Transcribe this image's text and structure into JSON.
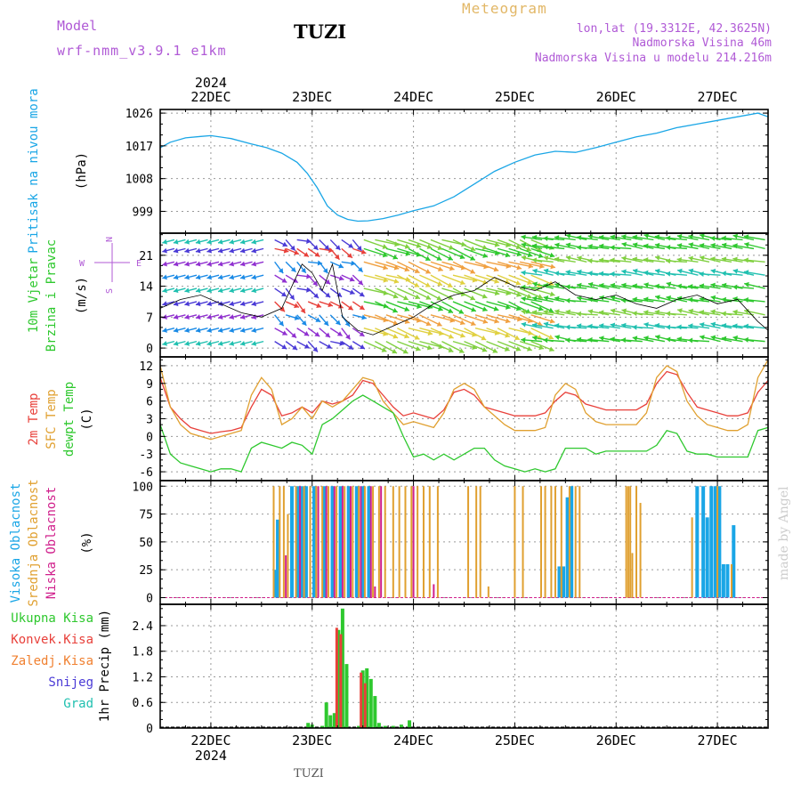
{
  "header": {
    "model_label": "Model",
    "model_name": "wrf-nmm_v3.9.1 e1km",
    "station": "TUZI",
    "product": "Meteogram",
    "lonlat": "lon,lat (19.3312E, 42.3625N)",
    "altitude": "Nadmorska Visina 46m",
    "model_altitude": "Nadmorska Visina u modelu 214.216m"
  },
  "footer": {
    "station": "TUZI",
    "credit": "made by Angel"
  },
  "colors": {
    "pressure": "#1aa6e6",
    "t2m": "#e8403a",
    "sfc": "#e0a030",
    "dewpt": "#2ec82e",
    "high_cloud": "#1aa6e6",
    "mid_cloud": "#e0a030",
    "low_cloud": "#d0208c",
    "total_precip": "#2ec82e",
    "conv_precip": "#e8403a",
    "frozen_precip": "#f08030",
    "snow": "#4a3ad6",
    "graupel": "#20c0b0",
    "wind_axis": "#b05ad6"
  },
  "chart_data": [
    {
      "type": "line",
      "panel": "pressure",
      "ylabel_outer": "Pritisak na nivou mora",
      "ylabel": "(hPa)",
      "year_top": "2024",
      "year_bottom": "2024",
      "day_labels": [
        "22DEC",
        "23DEC",
        "24DEC",
        "25DEC",
        "26DEC",
        "27DEC"
      ],
      "x": [
        21.5,
        21.6,
        21.75,
        21.9,
        22.0,
        22.2,
        22.4,
        22.55,
        22.7,
        22.85,
        22.95,
        23.05,
        23.15,
        23.25,
        23.35,
        23.45,
        23.55,
        23.7,
        23.85,
        24.0,
        24.2,
        24.4,
        24.6,
        24.8,
        25.0,
        25.2,
        25.4,
        25.6,
        25.8,
        26.0,
        26.2,
        26.4,
        26.6,
        26.8,
        27.0,
        27.2,
        27.4,
        27.5
      ],
      "values": [
        1016.5,
        1018.0,
        1019.2,
        1019.6,
        1019.8,
        1019.0,
        1017.5,
        1016.5,
        1015.0,
        1012.5,
        1009.5,
        1005.5,
        1000.5,
        998.0,
        996.8,
        996.3,
        996.4,
        997.0,
        998.0,
        999.2,
        1000.5,
        1003.0,
        1006.5,
        1010.0,
        1012.5,
        1014.5,
        1015.5,
        1015.2,
        1016.5,
        1018.0,
        1019.5,
        1020.5,
        1022.0,
        1023.0,
        1024.0,
        1025.0,
        1026.0,
        1025.0
      ],
      "yticks": [
        999,
        1008,
        1017,
        1026
      ],
      "ylim": [
        993,
        1027
      ]
    },
    {
      "type": "barbs",
      "panel": "wind",
      "ylabel_outer1": "10m Vjetar",
      "ylabel_outer2": "Brzina i Pravac",
      "ylabel": "(m/s)",
      "compass": {
        "north": "N",
        "south": "S",
        "west": "W",
        "east": "E"
      },
      "yticks": [
        0,
        7,
        14,
        21
      ],
      "ylim": [
        -2,
        26
      ],
      "speed_line_x": [
        21.5,
        21.7,
        21.9,
        22.1,
        22.3,
        22.5,
        22.7,
        22.8,
        22.9,
        23.0,
        23.1,
        23.2,
        23.3,
        23.45,
        23.6,
        23.8,
        24.0,
        24.2,
        24.4,
        24.6,
        24.8,
        25.0,
        25.2,
        25.4,
        25.6,
        25.8,
        26.0,
        26.2,
        26.4,
        26.6,
        26.8,
        27.0,
        27.2,
        27.4,
        27.5
      ],
      "speed_line_values": [
        9,
        11,
        12,
        10,
        8,
        7,
        9,
        14,
        19,
        17,
        13,
        19,
        7,
        4,
        3,
        5,
        7,
        10,
        12,
        13,
        16,
        14,
        13,
        15,
        12,
        11,
        12,
        10,
        9,
        11,
        12,
        10,
        11,
        6,
        4
      ]
    },
    {
      "type": "line",
      "panel": "temperature",
      "ylabel1": "2m Temp",
      "ylabel2": "SFC Temp",
      "ylabel3": "dewpt Temp",
      "ylabel": "(C)",
      "yticks": [
        -6,
        -3,
        0,
        3,
        6,
        9,
        12
      ],
      "ylim": [
        -7.5,
        13.5
      ],
      "x": [
        21.5,
        21.6,
        21.7,
        21.8,
        21.9,
        22.0,
        22.1,
        22.2,
        22.3,
        22.4,
        22.5,
        22.6,
        22.7,
        22.8,
        22.9,
        23.0,
        23.1,
        23.2,
        23.3,
        23.4,
        23.5,
        23.6,
        23.7,
        23.8,
        23.9,
        24.0,
        24.1,
        24.2,
        24.3,
        24.4,
        24.5,
        24.6,
        24.7,
        24.8,
        24.9,
        25.0,
        25.1,
        25.2,
        25.3,
        25.4,
        25.5,
        25.6,
        25.7,
        25.8,
        25.9,
        26.0,
        26.1,
        26.2,
        26.3,
        26.4,
        26.5,
        26.6,
        26.7,
        26.8,
        26.9,
        27.0,
        27.1,
        27.2,
        27.3,
        27.4,
        27.5
      ],
      "series": [
        {
          "name": "2m Temp",
          "values": [
            10,
            5,
            3,
            1.5,
            1,
            0.5,
            0.8,
            1,
            1.5,
            5,
            8,
            7,
            3.5,
            4,
            5,
            4,
            6,
            5.5,
            6,
            7,
            9.5,
            9,
            7,
            5,
            3.5,
            4,
            3.5,
            3,
            4.5,
            7.5,
            8,
            7,
            5,
            4.5,
            4,
            3.5,
            3.5,
            3.5,
            4,
            6,
            7.5,
            7,
            5.5,
            5,
            4.5,
            4.5,
            4.5,
            4.5,
            5.5,
            9,
            11,
            10.5,
            7.5,
            5,
            4.5,
            4,
            3.5,
            3.5,
            4,
            7.5,
            9.5
          ]
        },
        {
          "name": "SFC Temp",
          "values": [
            12,
            5,
            2,
            0.5,
            0,
            -0.5,
            0,
            0.5,
            1,
            7,
            10,
            8,
            2,
            3,
            5,
            3,
            6,
            5,
            6,
            8,
            10,
            9.5,
            6,
            4,
            2,
            2.5,
            2,
            1.5,
            4,
            8,
            9,
            8,
            5,
            3.5,
            2,
            1,
            1,
            1,
            1.5,
            7,
            9,
            8,
            4,
            2.5,
            2,
            2,
            2,
            2,
            4,
            10,
            12,
            11,
            6,
            3.5,
            2,
            1.5,
            1,
            1,
            2,
            10,
            13
          ]
        },
        {
          "name": "dewpt Temp",
          "values": [
            2,
            -3,
            -4.5,
            -5,
            -5.5,
            -6,
            -5.5,
            -5.5,
            -6,
            -2,
            -1,
            -1.5,
            -2,
            -1,
            -1.5,
            -3,
            2,
            3,
            4.5,
            6,
            7,
            6,
            5,
            4,
            0,
            -3.5,
            -3,
            -4,
            -3,
            -4,
            -3,
            -2,
            -2,
            -4,
            -5,
            -5.5,
            -6,
            -5.5,
            -6,
            -5.5,
            -2,
            -2,
            -2,
            -3,
            -2.5,
            -2.5,
            -2.5,
            -2.5,
            -2.5,
            -1.5,
            1,
            0.5,
            -2.5,
            -3,
            -3,
            -3.5,
            -3.5,
            -3.5,
            -3.5,
            1,
            1.5
          ]
        }
      ]
    },
    {
      "type": "bar",
      "panel": "cloud",
      "ylabel1": "Visoka Oblacnost",
      "ylabel2": "Srednja Oblacnost",
      "ylabel3": "Niska Oblacnost",
      "ylabel": "(%)",
      "yticks": [
        0,
        25,
        50,
        75,
        100
      ],
      "ylim": [
        -6,
        105
      ],
      "series": [
        {
          "name": "Visoka Oblacnost",
          "x": [
            22.64,
            22.66,
            22.8,
            22.86,
            22.9,
            22.94,
            23.02,
            23.12,
            23.2,
            23.28,
            23.36,
            23.44,
            23.5,
            23.56,
            25.44,
            25.48,
            25.52,
            25.56,
            26.8,
            26.86,
            26.9,
            26.94,
            26.98,
            27.02,
            27.06,
            27.1,
            27.16
          ],
          "values": [
            25,
            70,
            100,
            100,
            100,
            100,
            100,
            100,
            100,
            100,
            100,
            100,
            100,
            100,
            28,
            28,
            90,
            100,
            100,
            100,
            72,
            100,
            100,
            100,
            30,
            30,
            65
          ]
        },
        {
          "name": "Srednja Oblacnost",
          "x": [
            22.62,
            22.68,
            22.72,
            22.76,
            22.84,
            22.92,
            22.98,
            23.04,
            23.1,
            23.16,
            23.24,
            23.32,
            23.4,
            23.46,
            23.52,
            23.6,
            23.66,
            23.72,
            23.8,
            23.86,
            23.92,
            23.98,
            24.04,
            24.1,
            24.16,
            24.24,
            24.54,
            24.62,
            24.66,
            24.74,
            25.0,
            25.08,
            25.26,
            25.3,
            25.36,
            25.4,
            25.46,
            25.54,
            25.6,
            25.64,
            26.1,
            26.12,
            26.14,
            26.16,
            26.2,
            26.24,
            26.75,
            27.0,
            27.14
          ],
          "values": [
            100,
            100,
            100,
            75,
            100,
            100,
            100,
            100,
            100,
            100,
            100,
            100,
            100,
            100,
            100,
            100,
            100,
            100,
            100,
            100,
            100,
            100,
            100,
            100,
            100,
            100,
            100,
            100,
            100,
            10,
            100,
            100,
            100,
            100,
            100,
            100,
            100,
            100,
            100,
            100,
            100,
            100,
            100,
            40,
            100,
            85,
            72,
            100,
            30
          ]
        },
        {
          "name": "Niska Oblacnost",
          "x": [
            22.74,
            22.88,
            23.06,
            23.14,
            23.22,
            23.3,
            23.38,
            23.48,
            23.58,
            23.62,
            23.68,
            24.0,
            24.2
          ],
          "values": [
            38,
            100,
            100,
            100,
            100,
            100,
            100,
            100,
            100,
            10,
            100,
            100,
            12
          ]
        }
      ]
    },
    {
      "type": "bar",
      "panel": "precip",
      "ylabels": [
        "Ukupna Kisa",
        "Konvek.Kisa",
        "Zaledj.Kisa",
        "Snijeg",
        "Grad"
      ],
      "ylabel": "1hr Precip (mm)",
      "yticks": [
        0,
        0.6,
        1.2,
        1.8,
        2.4
      ],
      "ylim": [
        0,
        2.9
      ],
      "series": [
        {
          "name": "Ukupna Kisa",
          "x": [
            22.96,
            23.0,
            23.1,
            23.14,
            23.18,
            23.22,
            23.26,
            23.3,
            23.34,
            23.46,
            23.5,
            23.54,
            23.58,
            23.62,
            23.66,
            23.72,
            23.8,
            23.88,
            23.96
          ],
          "values": [
            0.12,
            0.08,
            0.05,
            0.6,
            0.3,
            0.35,
            2.3,
            2.8,
            1.5,
            0.05,
            1.35,
            1.4,
            1.15,
            0.75,
            0.12,
            0.05,
            0.05,
            0.08,
            0.18
          ]
        },
        {
          "name": "Konvek.Kisa",
          "x": [
            23.26,
            23.3,
            23.5,
            23.54
          ],
          "values": [
            2.35,
            2.2,
            1.3,
            1.05
          ]
        }
      ]
    }
  ]
}
